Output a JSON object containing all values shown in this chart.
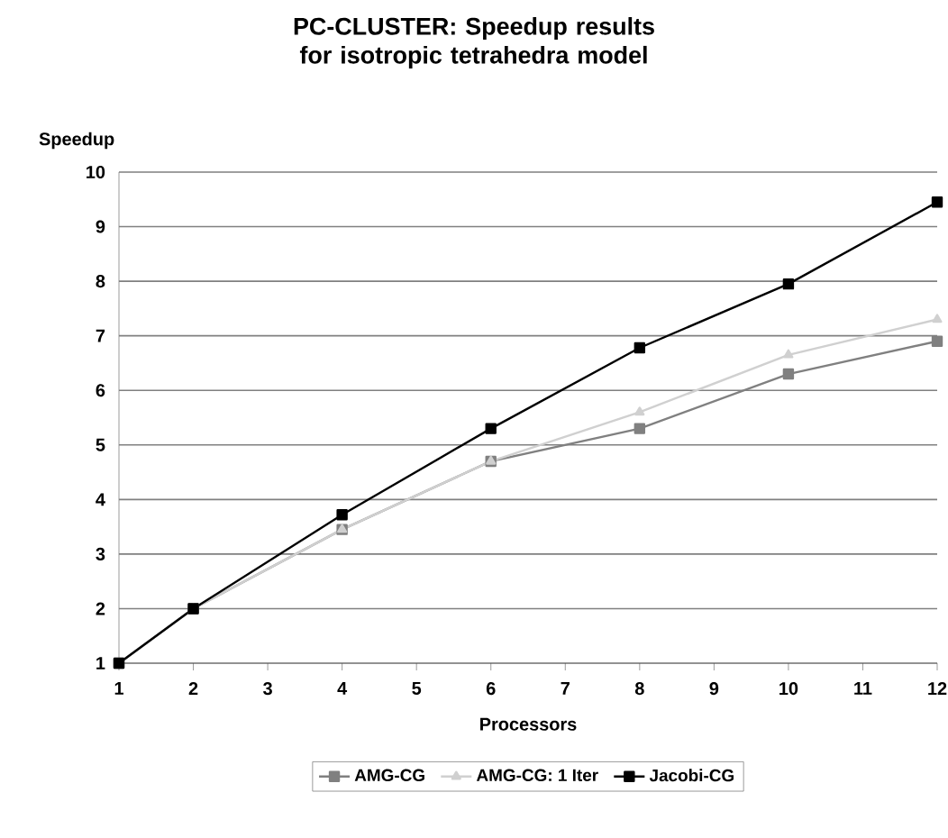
{
  "chart_data": {
    "type": "line",
    "title": "PC-CLUSTER: Speedup results for isotropic tetrahedra model",
    "xlabel": "Processors",
    "ylabel": "Speedup",
    "xlim": [
      1,
      12
    ],
    "xticks": [
      1,
      2,
      3,
      4,
      5,
      6,
      7,
      8,
      9,
      10,
      11,
      12
    ],
    "ylim": [
      1,
      10
    ],
    "yticks": [
      1,
      2,
      3,
      4,
      5,
      6,
      7,
      8,
      9,
      10
    ],
    "grid": "y",
    "legend": "bottom",
    "line_style": "solid",
    "x": [
      1,
      2,
      4,
      6,
      8,
      10,
      12
    ],
    "series": [
      {
        "name": "AMG-CG",
        "color": "#808080",
        "marker": "square",
        "values": [
          1,
          2,
          3.45,
          4.7,
          5.3,
          6.3,
          6.9
        ]
      },
      {
        "name": "AMG-CG: 1 Iter",
        "color": "#d0d0d0",
        "marker": "triangle",
        "values": [
          1,
          2,
          3.45,
          4.7,
          5.6,
          6.65,
          7.3
        ]
      },
      {
        "name": "Jacobi-CG",
        "color": "#000000",
        "marker": "square",
        "values": [
          1,
          2,
          3.72,
          5.3,
          6.78,
          7.95,
          9.45
        ]
      }
    ]
  }
}
